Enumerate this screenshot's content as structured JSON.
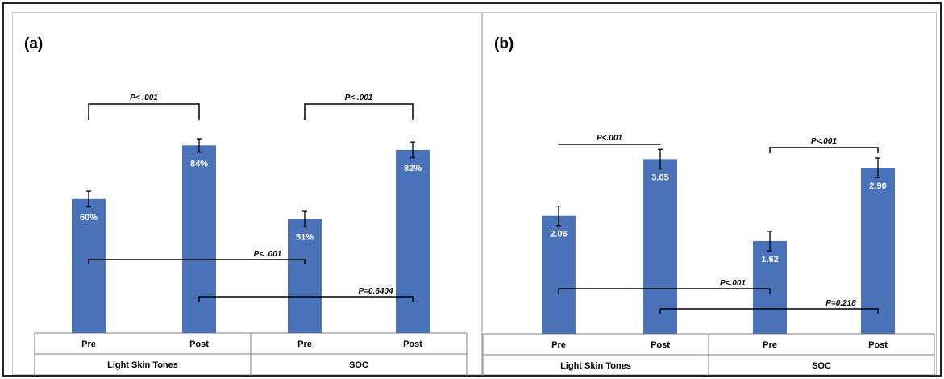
{
  "colors": {
    "bar": "#4a72b8",
    "axis": "#7f7f7f",
    "bracket": "#000000"
  },
  "chart_data": [
    {
      "type": "bar",
      "panel_label": "(a)",
      "groups": [
        "Light Skin Tones",
        "SOC"
      ],
      "categories": [
        "Pre",
        "Post",
        "Pre",
        "Post"
      ],
      "values": [
        60,
        84,
        51,
        82
      ],
      "value_labels": [
        "60%",
        "84%",
        "51%",
        "82%"
      ],
      "errors": [
        3.5,
        3.0,
        3.5,
        3.5
      ],
      "ylim": [
        0,
        100
      ],
      "grid": false,
      "legend": false,
      "comparisons": [
        {
          "from": 0,
          "to": 1,
          "label": "P< .001",
          "placement": "above"
        },
        {
          "from": 2,
          "to": 3,
          "label": "P< .001",
          "placement": "above"
        },
        {
          "from": 0,
          "to": 2,
          "label": "P< .001",
          "placement": "within",
          "level": 0
        },
        {
          "from": 1,
          "to": 3,
          "label": "P=0.6404",
          "placement": "within",
          "level": 1
        }
      ]
    },
    {
      "type": "bar",
      "panel_label": "(b)",
      "groups": [
        "Light Skin Tones",
        "SOC"
      ],
      "categories": [
        "Pre",
        "Post",
        "Pre",
        "Post"
      ],
      "values": [
        2.06,
        3.05,
        1.62,
        2.9
      ],
      "value_labels": [
        "2.06",
        "3.05",
        "1.62",
        "2.90"
      ],
      "errors": [
        0.17,
        0.17,
        0.17,
        0.17
      ],
      "ylim": [
        0,
        3.9
      ],
      "grid": false,
      "legend": false,
      "comparisons": [
        {
          "from": 0,
          "to": 1,
          "label": "P<.001",
          "placement": "above"
        },
        {
          "from": 2,
          "to": 3,
          "label": "P<.001",
          "placement": "above"
        },
        {
          "from": 0,
          "to": 2,
          "label": "P<.001",
          "placement": "within",
          "level": 0
        },
        {
          "from": 1,
          "to": 3,
          "label": "P=0.218",
          "placement": "within",
          "level": 1
        }
      ]
    }
  ]
}
